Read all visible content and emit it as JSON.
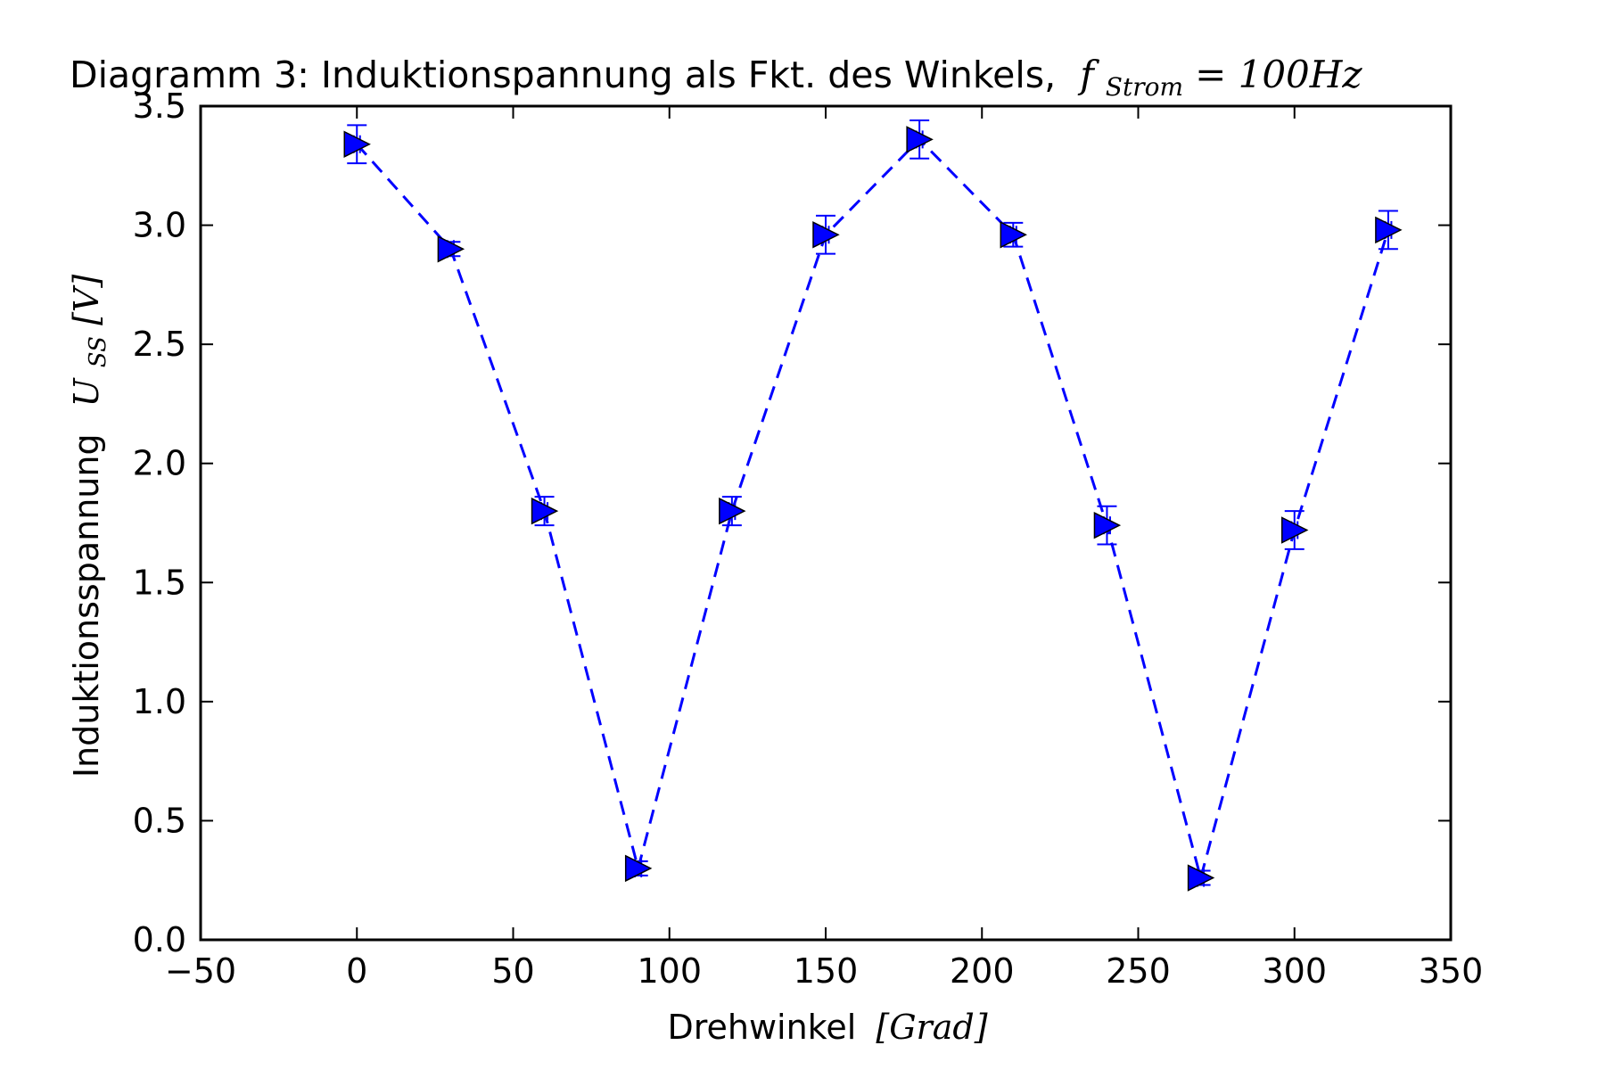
{
  "chart_data": {
    "type": "scatter",
    "title": {
      "prefix": "Diagramm 3: Induktionspannung als Fkt. des Winkels,",
      "symbol": "f",
      "subscript": "Strom",
      "equation": " = 100Hz"
    },
    "xlabel": {
      "text": "Drehwinkel",
      "unit": "[Grad]"
    },
    "ylabel": {
      "text": "Induktionsspannung",
      "symbol": "U",
      "subscript": "SS",
      "unit": "[V]"
    },
    "xlim": [
      -50,
      350
    ],
    "ylim": [
      0.0,
      3.5
    ],
    "xticks": [
      -50,
      0,
      50,
      100,
      150,
      200,
      250,
      300,
      350
    ],
    "xtick_labels": [
      "−50",
      "0",
      "50",
      "100",
      "150",
      "200",
      "250",
      "300",
      "350"
    ],
    "yticks": [
      0.0,
      0.5,
      1.0,
      1.5,
      2.0,
      2.5,
      3.0,
      3.5
    ],
    "ytick_labels": [
      "0.0",
      "0.5",
      "1.0",
      "1.5",
      "2.0",
      "2.5",
      "3.0",
      "3.5"
    ],
    "grid": false,
    "series": [
      {
        "marker": "triangle-right",
        "line_style": "dashed",
        "color": "#0000ff",
        "x": [
          0,
          30,
          60,
          90,
          120,
          150,
          180,
          210,
          240,
          270,
          300,
          330
        ],
        "y": [
          3.34,
          2.9,
          1.8,
          0.3,
          1.8,
          2.96,
          3.36,
          2.96,
          1.74,
          0.26,
          1.72,
          2.98
        ],
        "y_error": [
          0.08,
          0.03,
          0.06,
          0.03,
          0.06,
          0.08,
          0.08,
          0.05,
          0.08,
          0.03,
          0.08,
          0.08
        ],
        "x_error": [
          1,
          1,
          1,
          1,
          1,
          1,
          1,
          1,
          1,
          1,
          1,
          1
        ]
      }
    ]
  }
}
